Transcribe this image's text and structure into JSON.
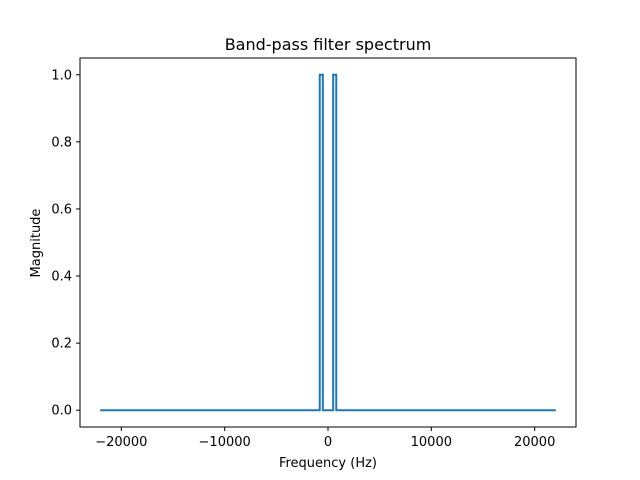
{
  "chart_data": {
    "type": "line",
    "title": "Band-pass filter spectrum",
    "xlabel": "Frequency (Hz)",
    "ylabel": "Magnitude",
    "xlim": [
      -24000,
      24000
    ],
    "ylim": [
      -0.05,
      1.05
    ],
    "x_ticks": [
      -20000,
      -10000,
      0,
      10000,
      20000
    ],
    "x_tick_labels": [
      "−20000",
      "−10000",
      "0",
      "10000",
      "20000"
    ],
    "y_ticks": [
      0.0,
      0.2,
      0.4,
      0.6,
      0.8,
      1.0
    ],
    "y_tick_labels": [
      "0.0",
      "0.2",
      "0.4",
      "0.6",
      "0.8",
      "1.0"
    ],
    "grid": false,
    "series": [
      {
        "color": "#1f77b4",
        "x": [
          -22050,
          -800,
          -800,
          -500,
          -500,
          500,
          500,
          800,
          800,
          22050
        ],
        "y": [
          0,
          0,
          1,
          1,
          0,
          0,
          1,
          1,
          0,
          0
        ]
      }
    ]
  }
}
